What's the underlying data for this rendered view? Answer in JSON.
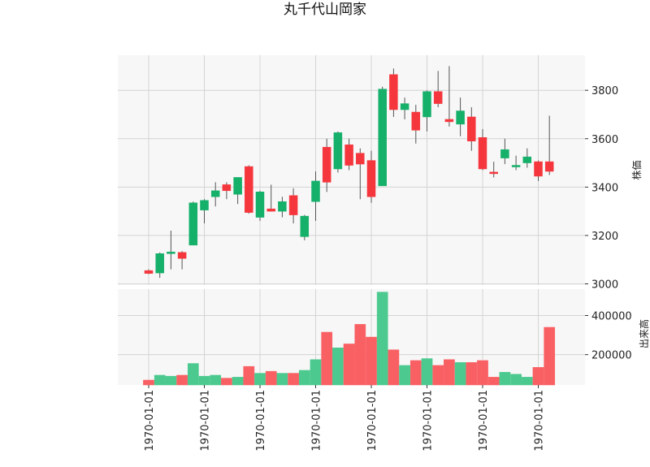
{
  "chart_data": {
    "type": "candlestick",
    "title": "丸千代山岡家",
    "price_panel": {
      "ylabel": "株価",
      "yticks": [
        3000,
        3200,
        3400,
        3600,
        3800
      ],
      "ylim": [
        2995,
        3945
      ],
      "grid": true
    },
    "volume_panel": {
      "ylabel": "出来高",
      "yticks": [
        200000,
        400000
      ],
      "ytick_labels": [
        "200000",
        "400000"
      ],
      "ylim": [
        45000,
        535000
      ],
      "grid": true
    },
    "x_tick_labels": [
      "1970-01-01",
      "1970-01-01",
      "1970-01-01",
      "1970-01-01",
      "1970-01-01",
      "1970-01-01",
      "1970-01-01",
      "1970-01-01"
    ],
    "x_tick_positions": [
      0,
      5,
      10,
      15,
      20,
      25,
      30,
      35
    ],
    "up_color": "#15b06a",
    "down_color": "#f5373d",
    "candles": [
      {
        "open": 3055,
        "high": 3060,
        "low": 3040,
        "close": 3043,
        "volume": 70000
      },
      {
        "open": 3045,
        "high": 3130,
        "low": 3025,
        "close": 3125,
        "volume": 95000
      },
      {
        "open": 3125,
        "high": 3220,
        "low": 3060,
        "close": 3132,
        "volume": 90000
      },
      {
        "open": 3130,
        "high": 3135,
        "low": 3060,
        "close": 3105,
        "volume": 95000
      },
      {
        "open": 3160,
        "high": 3340,
        "low": 3160,
        "close": 3335,
        "volume": 155000
      },
      {
        "open": 3305,
        "high": 3350,
        "low": 3250,
        "close": 3345,
        "volume": 90000
      },
      {
        "open": 3360,
        "high": 3420,
        "low": 3320,
        "close": 3385,
        "volume": 95000
      },
      {
        "open": 3410,
        "high": 3420,
        "low": 3350,
        "close": 3385,
        "volume": 80000
      },
      {
        "open": 3370,
        "high": 3440,
        "low": 3330,
        "close": 3440,
        "volume": 85000
      },
      {
        "open": 3485,
        "high": 3490,
        "low": 3290,
        "close": 3295,
        "volume": 140000
      },
      {
        "open": 3275,
        "high": 3385,
        "low": 3260,
        "close": 3380,
        "volume": 105000
      },
      {
        "open": 3310,
        "high": 3410,
        "low": 3300,
        "close": 3300,
        "volume": 115000
      },
      {
        "open": 3300,
        "high": 3360,
        "low": 3275,
        "close": 3340,
        "volume": 105000
      },
      {
        "open": 3365,
        "high": 3395,
        "low": 3250,
        "close": 3285,
        "volume": 105000
      },
      {
        "open": 3195,
        "high": 3285,
        "low": 3180,
        "close": 3280,
        "volume": 120000
      },
      {
        "open": 3340,
        "high": 3465,
        "low": 3260,
        "close": 3425,
        "volume": 175000
      },
      {
        "open": 3565,
        "high": 3600,
        "low": 3380,
        "close": 3420,
        "volume": 315000
      },
      {
        "open": 3475,
        "high": 3630,
        "low": 3460,
        "close": 3625,
        "volume": 235000
      },
      {
        "open": 3575,
        "high": 3600,
        "low": 3470,
        "close": 3490,
        "volume": 255000
      },
      {
        "open": 3540,
        "high": 3560,
        "low": 3350,
        "close": 3495,
        "volume": 355000
      },
      {
        "open": 3510,
        "high": 3550,
        "low": 3335,
        "close": 3360,
        "volume": 290000
      },
      {
        "open": 3405,
        "high": 3815,
        "low": 3405,
        "close": 3805,
        "volume": 520000
      },
      {
        "open": 3865,
        "high": 3890,
        "low": 3690,
        "close": 3720,
        "volume": 225000
      },
      {
        "open": 3720,
        "high": 3770,
        "low": 3680,
        "close": 3745,
        "volume": 145000
      },
      {
        "open": 3710,
        "high": 3740,
        "low": 3580,
        "close": 3635,
        "volume": 170000
      },
      {
        "open": 3690,
        "high": 3800,
        "low": 3630,
        "close": 3795,
        "volume": 180000
      },
      {
        "open": 3795,
        "high": 3880,
        "low": 3730,
        "close": 3745,
        "volume": 145000
      },
      {
        "open": 3680,
        "high": 3900,
        "low": 3650,
        "close": 3670,
        "volume": 175000
      },
      {
        "open": 3660,
        "high": 3770,
        "low": 3610,
        "close": 3715,
        "volume": 160000
      },
      {
        "open": 3690,
        "high": 3730,
        "low": 3550,
        "close": 3590,
        "volume": 160000
      },
      {
        "open": 3605,
        "high": 3640,
        "low": 3470,
        "close": 3475,
        "volume": 170000
      },
      {
        "open": 3462,
        "high": 3505,
        "low": 3440,
        "close": 3460,
        "volume": 85000
      },
      {
        "open": 3520,
        "high": 3600,
        "low": 3495,
        "close": 3555,
        "volume": 110000
      },
      {
        "open": 3485,
        "high": 3530,
        "low": 3470,
        "close": 3490,
        "volume": 100000
      },
      {
        "open": 3500,
        "high": 3560,
        "low": 3480,
        "close": 3525,
        "volume": 85000
      },
      {
        "open": 3505,
        "high": 3510,
        "low": 3425,
        "close": 3445,
        "volume": 135000
      },
      {
        "open": 3505,
        "high": 3695,
        "low": 3450,
        "close": 3465,
        "volume": 340000
      }
    ]
  }
}
